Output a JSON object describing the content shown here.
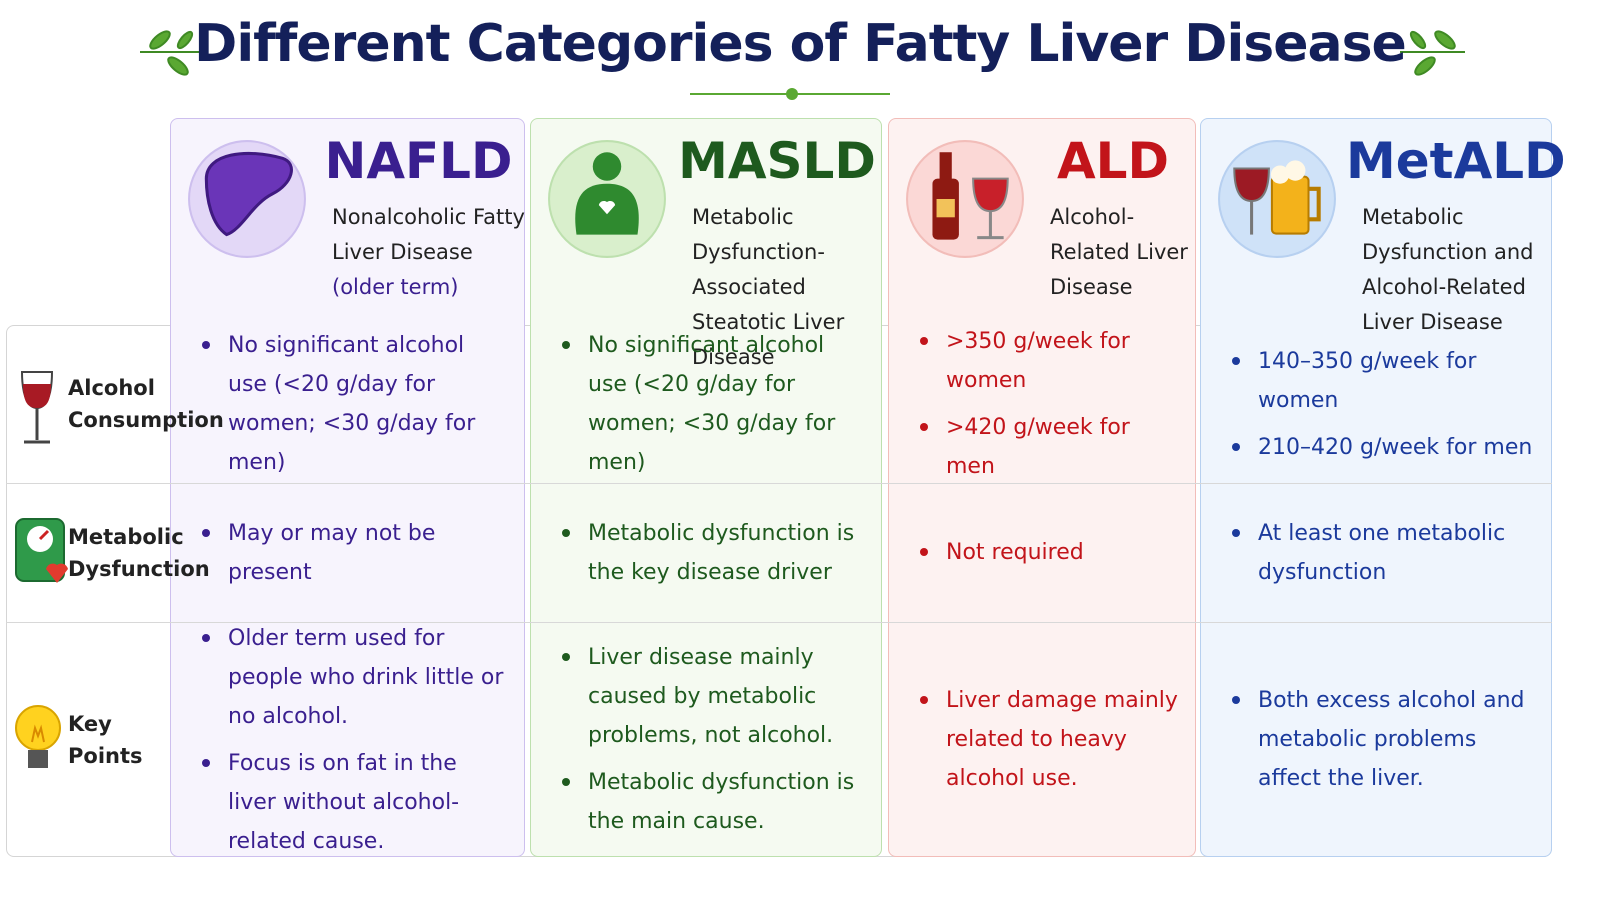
{
  "title": "Different Categories of Fatty Liver Disease",
  "columns": [
    {
      "abbr": "NAFLD",
      "name": "Nonalcoholic Fatty Liver Disease",
      "note": "(older term)"
    },
    {
      "abbr": "MASLD",
      "name": "Metabolic Dysfunction-Associated Steatotic Liver Disease"
    },
    {
      "abbr": "ALD",
      "name": "Alcohol-Related Liver Disease"
    },
    {
      "abbr": "MetALD",
      "name": "Metabolic Dysfunction and Alcohol-Related Liver Disease"
    }
  ],
  "rows": [
    {
      "label": "Alcohol Consumption",
      "cells": [
        [
          "No significant alcohol use (<20 g/day for women; <30 g/day for men)"
        ],
        [
          "No significant alcohol use (<20 g/day for women; <30 g/day for men)"
        ],
        [
          ">350 g/week for women",
          ">420 g/week for men"
        ],
        [
          "140–350 g/week for women",
          "210–420 g/week for men"
        ]
      ]
    },
    {
      "label": "Metabolic Dysfunction",
      "cells": [
        [
          "May or may not be present"
        ],
        [
          "Metabolic dysfunction is the key disease driver"
        ],
        [
          "Not required"
        ],
        [
          "At least one metabolic dysfunction"
        ]
      ]
    },
    {
      "label": "Key Points",
      "cells": [
        [
          "Older term used for people who drink little or no alcohol.",
          "Focus is on fat in the liver without alcohol-related cause."
        ],
        [
          "Liver disease mainly caused by metabolic problems, not alcohol.",
          "Metabolic dysfunction is the main cause."
        ],
        [
          "Liver damage mainly related to heavy alcohol use."
        ],
        [
          "Both excess alcohol and metabolic problems affect the liver."
        ]
      ]
    }
  ]
}
